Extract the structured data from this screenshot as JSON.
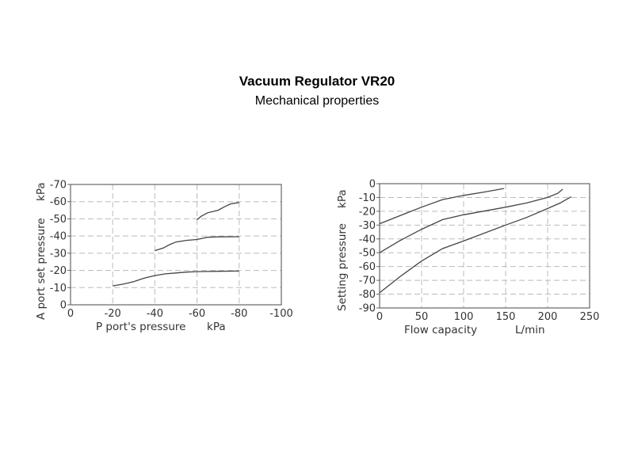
{
  "header": {
    "title": "Vacuum Regulator VR20",
    "subtitle": "Mechanical properties"
  },
  "chart_data": [
    {
      "type": "line",
      "xlabel": "P port's pressure",
      "xunit": "kPa",
      "ylabel": "A port set pressure",
      "yunit": "kPa",
      "xlim": [
        0,
        -100
      ],
      "ylim": [
        0,
        -70
      ],
      "x_ticks": [
        "0",
        "-20",
        "-40",
        "-60",
        "-80",
        "-100"
      ],
      "y_ticks": [
        "0",
        "-10",
        "-20",
        "-30",
        "-40",
        "-50",
        "-60",
        "-70"
      ],
      "grid": true,
      "series": [
        {
          "points": [
            [
              -20,
              -11
            ],
            [
              -25,
              -12
            ],
            [
              -30,
              -13.5
            ],
            [
              -35,
              -15.5
            ],
            [
              -40,
              -17
            ],
            [
              -45,
              -18
            ],
            [
              -50,
              -18.5
            ],
            [
              -55,
              -19
            ],
            [
              -60,
              -19.3
            ],
            [
              -70,
              -19.5
            ],
            [
              -80,
              -19.6
            ]
          ]
        },
        {
          "points": [
            [
              -40,
              -31.5
            ],
            [
              -44,
              -33
            ],
            [
              -47,
              -35
            ],
            [
              -50,
              -36.5
            ],
            [
              -55,
              -37.5
            ],
            [
              -60,
              -38
            ],
            [
              -65,
              -39.3
            ],
            [
              -70,
              -39.5
            ],
            [
              -80,
              -39.6
            ]
          ]
        },
        {
          "points": [
            [
              -60,
              -49.5
            ],
            [
              -62,
              -51.5
            ],
            [
              -65,
              -53.5
            ],
            [
              -70,
              -55
            ],
            [
              -73,
              -57
            ],
            [
              -76,
              -58.7
            ],
            [
              -80,
              -59.5
            ]
          ]
        }
      ]
    },
    {
      "type": "line",
      "xlabel": "Flow capacity",
      "xunit": "L/min",
      "ylabel": "Setting pressure",
      "yunit": "kPa",
      "xlim": [
        0,
        250
      ],
      "ylim": [
        -90,
        0
      ],
      "x_ticks": [
        "0",
        "50",
        "100",
        "150",
        "200",
        "250"
      ],
      "y_ticks": [
        "0",
        "-10",
        "-20",
        "-30",
        "-40",
        "-50",
        "-60",
        "-70",
        "-80",
        "-90"
      ],
      "grid": true,
      "series": [
        {
          "points": [
            [
              0,
              -29
            ],
            [
              25,
              -23
            ],
            [
              50,
              -17
            ],
            [
              75,
              -11.5
            ],
            [
              100,
              -8.5
            ],
            [
              125,
              -6
            ],
            [
              148,
              -3.5
            ]
          ]
        },
        {
          "points": [
            [
              0,
              -50
            ],
            [
              25,
              -41
            ],
            [
              50,
              -33
            ],
            [
              75,
              -26
            ],
            [
              100,
              -22.5
            ],
            [
              150,
              -17
            ],
            [
              175,
              -14
            ],
            [
              200,
              -10
            ],
            [
              212,
              -7
            ],
            [
              218,
              -4
            ]
          ]
        },
        {
          "points": [
            [
              0,
              -79
            ],
            [
              25,
              -67
            ],
            [
              50,
              -56
            ],
            [
              75,
              -47
            ],
            [
              100,
              -41.5
            ],
            [
              150,
              -30
            ],
            [
              175,
              -24.5
            ],
            [
              200,
              -18
            ],
            [
              215,
              -14
            ],
            [
              228,
              -9.5
            ]
          ]
        }
      ]
    }
  ]
}
